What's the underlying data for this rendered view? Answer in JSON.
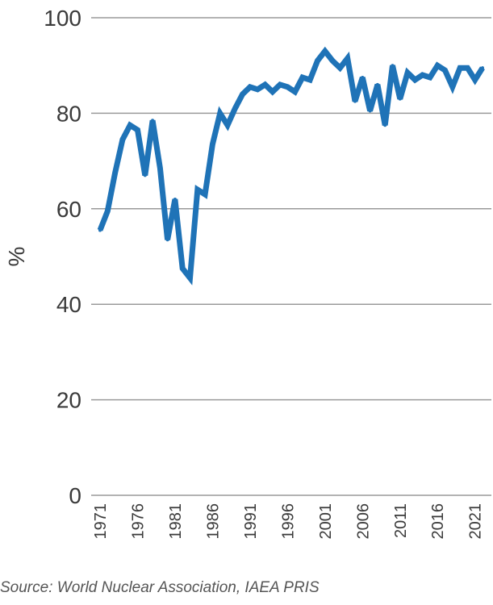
{
  "chart_data": {
    "type": "line",
    "title": "",
    "xlabel": "",
    "ylabel": "%",
    "ylim": [
      0,
      100
    ],
    "yticks": [
      "0",
      "20",
      "40",
      "60",
      "80",
      "100"
    ],
    "xtick_labels": [
      "1971",
      "1976",
      "1981",
      "1986",
      "1991",
      "1996",
      "2001",
      "2006",
      "2011",
      "2016",
      "2021"
    ],
    "grid": "horizontal",
    "legend": "none",
    "series_color": "#1f73b7",
    "grid_color": "#9a9a9a",
    "series": [
      {
        "x": [
          1971,
          1972,
          1973,
          1974,
          1975,
          1976,
          1977,
          1978,
          1979,
          1980,
          1981,
          1982,
          1983,
          1984,
          1985,
          1986,
          1987,
          1988,
          1989,
          1990,
          1991,
          1992,
          1993,
          1994,
          1995,
          1996,
          1997,
          1998,
          1999,
          2000,
          2001,
          2002,
          2003,
          2004,
          2005,
          2006,
          2007,
          2008,
          2009,
          2010,
          2011,
          2012,
          2013,
          2014,
          2015,
          2016,
          2017,
          2018,
          2019,
          2020,
          2021,
          2022
        ],
        "values": [
          55.5,
          59.5,
          67.5,
          74.5,
          77.5,
          76.5,
          67.0,
          78.5,
          68.5,
          53.5,
          62.0,
          47.5,
          45.5,
          64.0,
          63.0,
          73.5,
          80.0,
          77.5,
          81.0,
          84.0,
          85.5,
          85.0,
          86.0,
          84.5,
          86.0,
          85.5,
          84.5,
          87.5,
          87.0,
          91.0,
          93.0,
          91.0,
          89.5,
          91.5,
          82.5,
          87.5,
          80.5,
          86.0,
          77.5,
          90.0,
          83.0,
          88.5,
          87.0,
          88.0,
          87.5,
          90.0,
          89.0,
          85.5,
          89.5,
          89.5,
          87.0,
          89.5
        ]
      }
    ]
  },
  "source": "Source: World Nuclear Association, IAEA PRIS"
}
